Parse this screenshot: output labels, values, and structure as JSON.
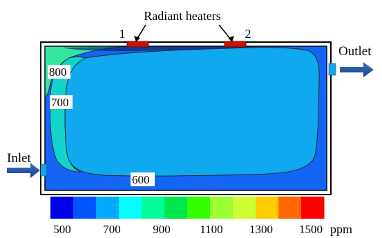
{
  "title": "Radiant heaters",
  "heater_labels": [
    "1",
    "2"
  ],
  "inlet_label": "Inlet",
  "outlet_label": "Outlet",
  "contour_labels": [
    "800",
    "700",
    "600"
  ],
  "legend": {
    "tick_labels": [
      "500",
      "700",
      "900",
      "1100",
      "1300",
      "1500"
    ],
    "unit": "ppm",
    "colors": [
      "#0000e6",
      "#0055ff",
      "#00aaff",
      "#00ffff",
      "#00ff99",
      "#00e64d",
      "#33ff00",
      "#99ff33",
      "#ccff33",
      "#ffcc00",
      "#ff6600",
      "#ff0000"
    ]
  },
  "colors": {
    "room_fill": "#1565f5",
    "core_fill": "#10a8ee",
    "band_700": "#13d4cc",
    "band_800": "#35e6a0",
    "heater": "#cc1100",
    "arrow": "#1f56a6",
    "port": "#1aa5e8"
  }
}
